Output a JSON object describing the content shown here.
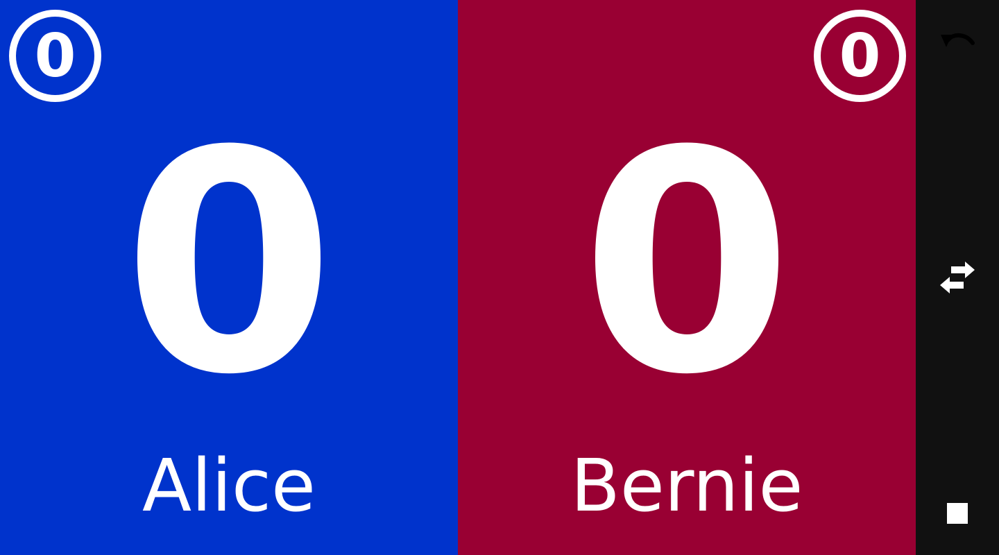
{
  "players": [
    {
      "name": "Alice",
      "score": "0",
      "badge": "0",
      "color": "#0033cc"
    },
    {
      "name": "Bernie",
      "score": "0",
      "badge": "0",
      "color": "#990033"
    }
  ],
  "sidebar": {
    "background": "#111111",
    "buttons": [
      {
        "icon": "undo-icon"
      },
      {
        "icon": "swap-icon"
      },
      {
        "icon": "stop-icon"
      }
    ]
  }
}
